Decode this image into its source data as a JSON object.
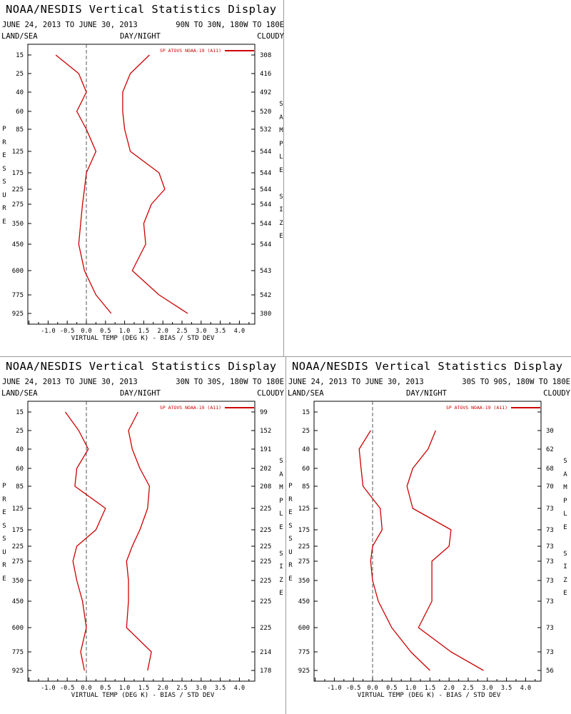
{
  "panels": [
    {
      "title": "NOAA/NESDIS Vertical Statistics Display",
      "date_range": "JUNE 24, 2013 TO JUNE 30, 2013",
      "region": "90N TO 30N, 180W TO 180E",
      "land_sea": "LAND/SEA",
      "day_night": "DAY/NIGHT",
      "cloudy": "CLOUDY",
      "left_axis_label": "PRESSURE",
      "right_axis_label": "SAMPLE SIZE",
      "legend": "SP ATOVS NOAA-19 (A11)",
      "sample_sizes": [
        "308",
        "416",
        "492",
        "520",
        "532",
        "544",
        "544",
        "544",
        "544",
        "544",
        "544",
        "543",
        "542",
        "380"
      ]
    },
    {
      "title": "NOAA/NESDIS Vertical Statistics Display",
      "date_range": "JUNE 24, 2013 TO JUNE 30, 2013",
      "region": "30N TO 30S, 180W TO 180E",
      "land_sea": "LAND/SEA",
      "day_night": "DAY/NIGHT",
      "cloudy": "CLOUDY",
      "left_axis_label": "PRESSURE",
      "right_axis_label": "SAMPLE SIZE",
      "legend": "SP ATOVS NOAA-19 (A11)",
      "sample_sizes": [
        "99",
        "152",
        "191",
        "202",
        "208",
        "225",
        "225",
        "225",
        "225",
        "225",
        "225",
        "225",
        "214",
        "178"
      ]
    },
    {
      "title": "NOAA/NESDIS Vertical Statistics Display",
      "date_range": "JUNE 24, 2013 TO JUNE 30, 2013",
      "region": "30S TO 90S, 180W TO 180E",
      "land_sea": "LAND/SEA",
      "day_night": "DAY/NIGHT",
      "cloudy": "CLOUDY",
      "left_axis_label": "PRESSURE",
      "right_axis_label": "SAMPLE SIZE",
      "legend": "SP ATOVS NOAA-19 (A11)",
      "sample_sizes": [
        "",
        "30",
        "62",
        "68",
        "70",
        "73",
        "73",
        "73",
        "73",
        "73",
        "73",
        "73",
        "73",
        "56"
      ]
    }
  ],
  "chart_data": [
    {
      "type": "line",
      "title": "NOAA/NESDIS Vertical Statistics Display",
      "subtitle": "90N TO 30N, 180W TO 180E",
      "xlabel": "VIRTUAL TEMP (DEG K) - BIAS / STD DEV",
      "ylabel": "PRESSURE",
      "xlim": [
        -1.5,
        4.5
      ],
      "x_ticks": [
        "-1.0",
        "-0.5",
        "0.0",
        "0.5",
        "1.0",
        "1.5",
        "2.0",
        "2.5",
        "3.0",
        "3.5",
        "4.0"
      ],
      "pressure_levels": [
        "15",
        "25",
        "40",
        "60",
        "85",
        "125",
        "175",
        "225",
        "275",
        "350",
        "450",
        "600",
        "775",
        "925"
      ],
      "series": [
        {
          "name": "SP ATOVS NOAA-19 (A11)",
          "metric": "bias",
          "color": "#cc0000",
          "values": [
            -0.8,
            -0.2,
            0.0,
            -0.25,
            0.0,
            0.25,
            0.0,
            -0.05,
            -0.1,
            -0.15,
            -0.2,
            -0.05,
            0.25,
            0.65
          ]
        },
        {
          "name": "SP ATOVS NOAA-19 (A11)",
          "metric": "std_dev",
          "color": "#cc0000",
          "values": [
            1.65,
            1.15,
            0.95,
            0.95,
            1.0,
            1.15,
            1.9,
            2.05,
            1.7,
            1.5,
            1.55,
            1.2,
            1.9,
            2.65
          ]
        }
      ]
    },
    {
      "type": "line",
      "title": "NOAA/NESDIS Vertical Statistics Display",
      "subtitle": "30N TO 30S, 180W TO 180E",
      "xlabel": "VIRTUAL TEMP (DEG K) - BIAS / STD DEV",
      "ylabel": "PRESSURE",
      "xlim": [
        -1.5,
        4.5
      ],
      "x_ticks": [
        "-1.0",
        "-0.5",
        "0.0",
        "0.5",
        "1.0",
        "1.5",
        "2.0",
        "2.5",
        "3.0",
        "3.5",
        "4.0"
      ],
      "pressure_levels": [
        "15",
        "25",
        "40",
        "60",
        "85",
        "125",
        "175",
        "225",
        "275",
        "350",
        "450",
        "600",
        "775",
        "925"
      ],
      "series": [
        {
          "name": "SP ATOVS NOAA-19 (A11)",
          "metric": "bias",
          "color": "#cc0000",
          "values": [
            -0.55,
            -0.2,
            0.05,
            -0.25,
            -0.3,
            0.5,
            0.25,
            -0.25,
            -0.35,
            -0.25,
            -0.1,
            0.0,
            -0.15,
            -0.05
          ]
        },
        {
          "name": "SP ATOVS NOAA-19 (A11)",
          "metric": "std_dev",
          "color": "#cc0000",
          "values": [
            1.35,
            1.1,
            1.2,
            1.4,
            1.65,
            1.6,
            1.4,
            1.2,
            1.05,
            1.1,
            1.1,
            1.05,
            1.7,
            1.6
          ]
        }
      ]
    },
    {
      "type": "line",
      "title": "NOAA/NESDIS Vertical Statistics Display",
      "subtitle": "30S TO 90S, 180W TO 180E",
      "xlabel": "VIRTUAL TEMP (DEG K) - BIAS / STD DEV",
      "ylabel": "PRESSURE",
      "xlim": [
        -1.5,
        4.5
      ],
      "x_ticks": [
        "-1.0",
        "-0.5",
        "0.0",
        "0.5",
        "1.0",
        "1.5",
        "2.0",
        "2.5",
        "3.0",
        "3.5",
        "4.0"
      ],
      "pressure_levels": [
        "15",
        "25",
        "40",
        "60",
        "85",
        "125",
        "175",
        "225",
        "275",
        "350",
        "450",
        "600",
        "775",
        "925"
      ],
      "series": [
        {
          "name": "SP ATOVS NOAA-19 (A11)",
          "metric": "bias",
          "color": "#cc0000",
          "values": [
            null,
            -0.05,
            -0.35,
            -0.3,
            -0.25,
            0.2,
            0.25,
            0.0,
            -0.05,
            0.0,
            0.15,
            0.5,
            1.0,
            1.5
          ]
        },
        {
          "name": "SP ATOVS NOAA-19 (A11)",
          "metric": "std_dev",
          "color": "#cc0000",
          "values": [
            null,
            1.65,
            1.45,
            1.05,
            0.9,
            1.05,
            2.05,
            2.0,
            1.55,
            1.55,
            1.55,
            1.2,
            2.05,
            2.9
          ]
        }
      ]
    }
  ]
}
